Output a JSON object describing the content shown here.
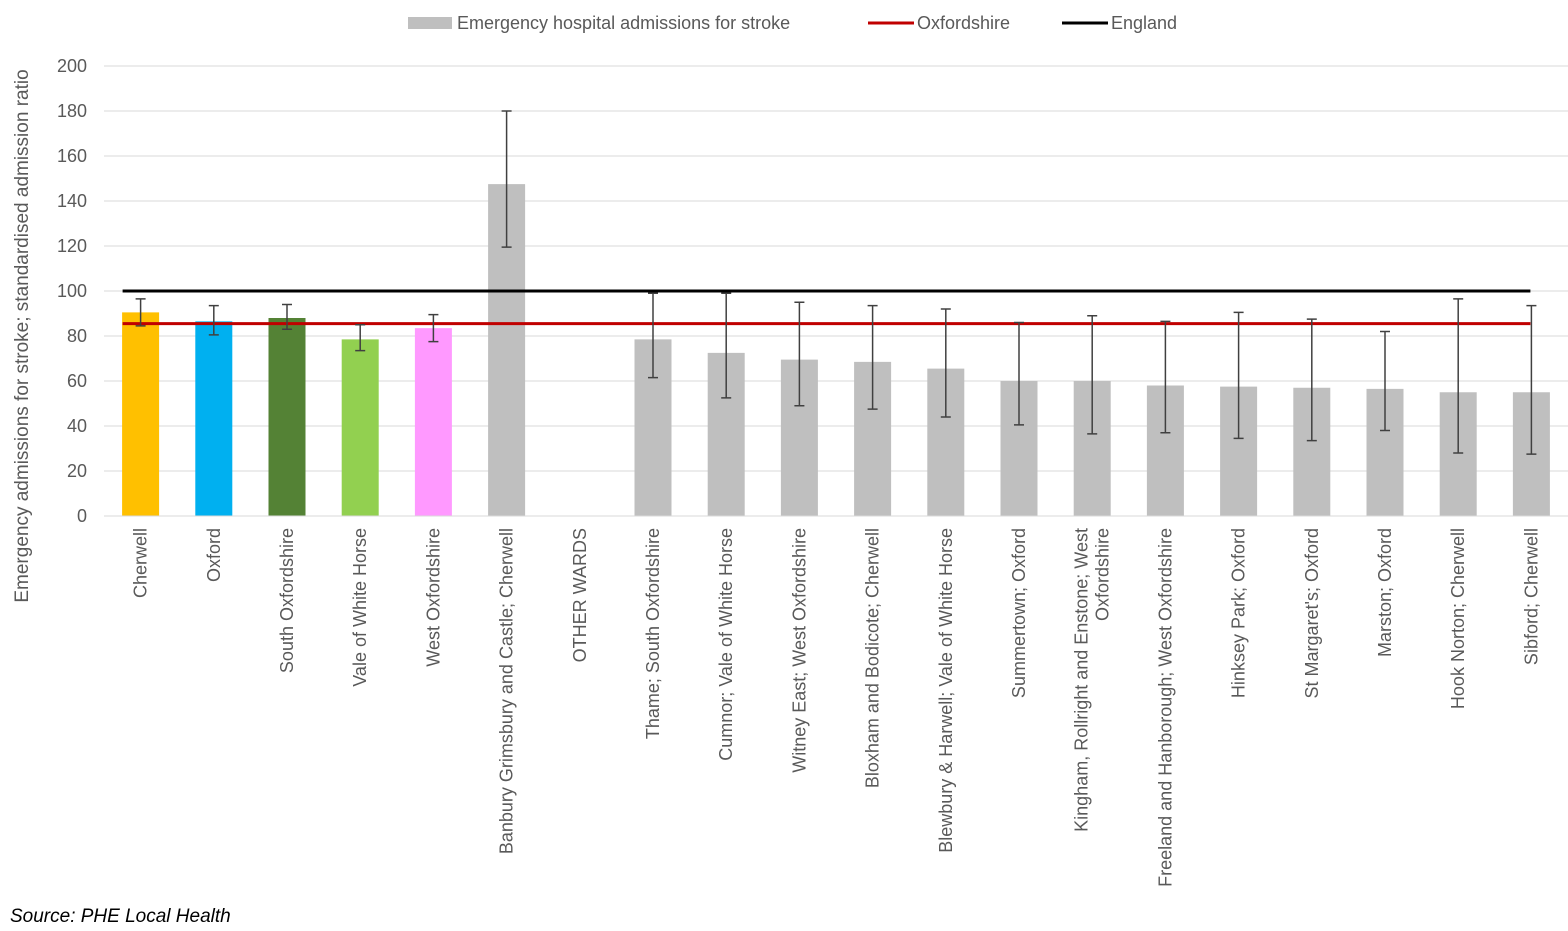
{
  "source": "Source: PHE Local Health",
  "chart_data": {
    "type": "bar",
    "ylabel": "Emergency admissions for stroke; standardised admission ratio",
    "ylim": [
      0,
      200
    ],
    "yticks": [
      0,
      20,
      40,
      60,
      80,
      100,
      120,
      140,
      160,
      180,
      200
    ],
    "grid": true,
    "legend_position": "top",
    "legend": [
      {
        "label": "Emergency hospital admissions for stroke",
        "kind": "bar",
        "color": "#bfbfbf"
      },
      {
        "label": "Oxfordshire",
        "kind": "line",
        "color": "#c00000"
      },
      {
        "label": "England",
        "kind": "line",
        "color": "#000000"
      }
    ],
    "reference_lines": [
      {
        "name": "Oxfordshire",
        "value": 85.5,
        "color": "#c00000"
      },
      {
        "name": "England",
        "value": 100,
        "color": "#000000"
      }
    ],
    "categories": [
      "Cherwell",
      "Oxford",
      "South Oxfordshire",
      "Vale of White Horse",
      "West Oxfordshire",
      "Banbury Grimsbury and Castle; Cherwell",
      "OTHER WARDS",
      "Thame; South Oxfordshire",
      "Cumnor; Vale of White Horse",
      "Witney East; West Oxfordshire",
      "Bloxham and Bodicote; Cherwell",
      "Blewbury & Harwell; Vale of White Horse",
      "Summertown; Oxford",
      "Kingham, Rollright and Enstone; West Oxfordshire",
      "Freeland and Hanborough; West Oxfordshire",
      "Hinksey Park; Oxford",
      "St Margaret's; Oxford",
      "Marston; Oxford",
      "Hook Norton; Cherwell",
      "Sibford; Cherwell"
    ],
    "values": [
      90.5,
      86.5,
      88,
      78.5,
      83.5,
      147.5,
      null,
      78.5,
      72.5,
      69.5,
      68.5,
      65.5,
      60,
      60,
      58,
      57.5,
      57,
      56.5,
      55,
      55
    ],
    "ci_lower": [
      84.5,
      80.5,
      83,
      73.5,
      77.5,
      119.5,
      null,
      61.5,
      52.5,
      49,
      47.5,
      44,
      40.5,
      36.5,
      37,
      34.5,
      33.5,
      38,
      28,
      27.5
    ],
    "ci_upper": [
      96.5,
      93.5,
      94,
      85,
      89.5,
      180,
      null,
      99,
      99,
      95,
      93.5,
      92,
      86,
      89,
      86.5,
      90.5,
      87.5,
      82,
      96.5,
      93.5
    ],
    "colors": [
      "#ffc000",
      "#00b0f0",
      "#548235",
      "#92d050",
      "#ff99ff",
      "#bfbfbf",
      "#bfbfbf",
      "#bfbfbf",
      "#bfbfbf",
      "#bfbfbf",
      "#bfbfbf",
      "#bfbfbf",
      "#bfbfbf",
      "#bfbfbf",
      "#bfbfbf",
      "#bfbfbf",
      "#bfbfbf",
      "#bfbfbf",
      "#bfbfbf",
      "#bfbfbf"
    ],
    "label_wrap": {
      "Kingham, Rollright and Enstone; West Oxfordshire": [
        "Kingham, Rollright and Enstone; West",
        "Oxfordshire"
      ]
    }
  }
}
